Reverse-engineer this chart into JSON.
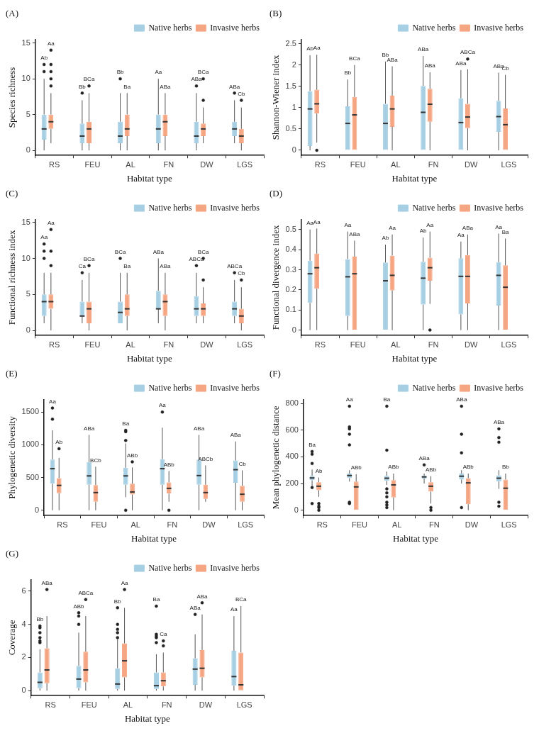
{
  "chart_data": [
    {
      "type": "box",
      "title": "(A)",
      "xlabel": "Habitat type",
      "ylabel": "Species richness",
      "categories": [
        "RS",
        "FEU",
        "AL",
        "FN",
        "DW",
        "LGS"
      ],
      "ylim": [
        -0.7,
        15.5
      ],
      "yticks": [
        0,
        5,
        10,
        15
      ],
      "grid": false,
      "legend": "top right",
      "series": [
        {
          "name": "Native herbs",
          "color": "#a6cfe3",
          "value_labels": [
            "Ab",
            "Bb",
            "Bb",
            "Aa",
            "ABa",
            "ABa"
          ],
          "boxes": [
            {
              "low": 0,
              "q1": 1.5,
              "median": 3,
              "q3": 5,
              "high": 10,
              "outliers": [
                11,
                12
              ]
            },
            {
              "low": 0,
              "q1": 1,
              "median": 2,
              "q3": 3.75,
              "high": 7,
              "outliers": [
                8
              ]
            },
            {
              "low": 0,
              "q1": 1,
              "median": 2,
              "q3": 4,
              "high": 8,
              "outliers": [
                10
              ]
            },
            {
              "low": 0,
              "q1": 1,
              "median": 3,
              "q3": 5,
              "high": 10
            },
            {
              "low": 0,
              "q1": 1,
              "median": 2,
              "q3": 4,
              "high": 8,
              "outliers": [
                9
              ]
            },
            {
              "low": 1,
              "q1": 2,
              "median": 3,
              "q3": 4,
              "high": 7,
              "outliers": [
                8
              ]
            }
          ]
        },
        {
          "name": "Invasive herbs",
          "color": "#f5a582",
          "value_labels": [
            "Aa",
            "BCa",
            "Ba",
            "ABa",
            "BCa",
            "Cb"
          ],
          "boxes": [
            {
              "low": 1,
              "q1": 3,
              "median": 4,
              "q3": 5,
              "high": 8,
              "outliers": [
                9,
                10,
                11,
                12,
                14
              ]
            },
            {
              "low": 0,
              "q1": 1,
              "median": 3,
              "q3": 4,
              "high": 8,
              "outliers": [
                9
              ]
            },
            {
              "low": 0,
              "q1": 2,
              "median": 3,
              "q3": 5,
              "high": 8
            },
            {
              "low": 0,
              "q1": 2,
              "median": 4,
              "q3": 5,
              "high": 8
            },
            {
              "low": 1,
              "q1": 2,
              "median": 3,
              "q3": 3.75,
              "high": 6,
              "outliers": [
                7,
                10
              ]
            },
            {
              "low": 0,
              "q1": 1,
              "median": 2,
              "q3": 3,
              "high": 6,
              "outliers": [
                7
              ]
            }
          ]
        }
      ]
    },
    {
      "type": "box",
      "title": "(B)",
      "xlabel": "Habitat type",
      "ylabel": "Shannon-Wiener index",
      "categories": [
        "RS",
        "FEU",
        "AL",
        "FN",
        "DW",
        "LGS"
      ],
      "ylim": [
        -0.12,
        2.6
      ],
      "yticks": [
        0,
        0.5,
        1,
        1.5,
        2,
        2.5
      ],
      "grid": false,
      "legend": "top right",
      "series": [
        {
          "name": "Native herbs",
          "color": "#a6cfe3",
          "value_labels": [
            "Ab",
            "Bb",
            "Bb",
            "ABa",
            "ABa",
            "ABa"
          ],
          "boxes": [
            {
              "low": 0,
              "q1": 0.1,
              "median": 0.97,
              "q3": 1.39,
              "high": 2.23
            },
            {
              "low": 0,
              "q1": 0,
              "median": 0.63,
              "q3": 1.03,
              "high": 1.66
            },
            {
              "low": 0,
              "q1": 0,
              "median": 0.63,
              "q3": 1.09,
              "high": 2.08
            },
            {
              "low": 0,
              "q1": 0,
              "median": 0.89,
              "q3": 1.51,
              "high": 2.21
            },
            {
              "low": 0,
              "q1": 0,
              "median": 0.65,
              "q3": 1.22,
              "high": 1.88
            },
            {
              "low": 0,
              "q1": 0.43,
              "median": 0.79,
              "q3": 1.16,
              "high": 1.82
            }
          ]
        },
        {
          "name": "Invasive herbs",
          "color": "#f5a582",
          "value_labels": [
            "Aa",
            "BCa",
            "ABa",
            "ABa",
            "ABCa",
            "Cb"
          ],
          "boxes": [
            {
              "low": 0.18,
              "q1": 0.86,
              "median": 1.09,
              "q3": 1.42,
              "high": 2.24,
              "outliers": [
                0
              ]
            },
            {
              "low": 0,
              "q1": 0,
              "median": 0.83,
              "q3": 1.25,
              "high": 2.0
            },
            {
              "low": 0,
              "q1": 0.55,
              "median": 0.97,
              "q3": 1.28,
              "high": 1.97
            },
            {
              "low": 0,
              "q1": 0.67,
              "median": 1.08,
              "q3": 1.44,
              "high": 1.83
            },
            {
              "low": 0,
              "q1": 0.52,
              "median": 0.78,
              "q3": 1.09,
              "high": 1.9,
              "outliers": [
                2.14
              ]
            },
            {
              "low": 0,
              "q1": 0,
              "median": 0.6,
              "q3": 0.98,
              "high": 1.77
            }
          ]
        }
      ]
    },
    {
      "type": "box",
      "title": "(C)",
      "xlabel": "Habitat type",
      "ylabel": "Functional richness index",
      "categories": [
        "RS",
        "FEU",
        "AL",
        "FN",
        "DW",
        "LGS"
      ],
      "ylim": [
        -0.7,
        15.4
      ],
      "yticks": [
        0,
        5,
        10,
        15
      ],
      "grid": false,
      "legend": "top right",
      "series": [
        {
          "name": "Native herbs",
          "color": "#a6cfe3",
          "value_labels": [
            "Aa",
            "Ca",
            "BCa",
            "ABa",
            "ABCa",
            "ABCa"
          ],
          "boxes": [
            {
              "low": 1,
              "q1": 2,
              "median": 4,
              "q3": 5,
              "high": 8,
              "outliers": [
                10,
                11,
                12
              ]
            },
            {
              "low": 1,
              "q1": 2,
              "median": 2,
              "q3": 4,
              "high": 7,
              "outliers": [
                8
              ]
            },
            {
              "low": 1,
              "q1": 1,
              "median": 2.5,
              "q3": 4,
              "high": 8,
              "outliers": [
                10
              ]
            },
            {
              "low": 1,
              "q1": 3,
              "median": 3,
              "q3": 5.5,
              "high": 10
            },
            {
              "low": 1,
              "q1": 2,
              "median": 3,
              "q3": 4.75,
              "high": 8,
              "outliers": [
                9
              ]
            },
            {
              "low": 1,
              "q1": 2,
              "median": 3,
              "q3": 4,
              "high": 7,
              "outliers": [
                8
              ]
            }
          ]
        },
        {
          "name": "Invasive herbs",
          "color": "#f5a582",
          "value_labels": [
            "Aa",
            "BCa",
            "Ba",
            "ABa",
            "BCa",
            "Cb"
          ],
          "boxes": [
            {
              "low": 0,
              "q1": 3,
              "median": 4,
              "q3": 5,
              "high": 8,
              "outliers": [
                9,
                11,
                14
              ]
            },
            {
              "low": 0,
              "q1": 1,
              "median": 3,
              "q3": 4,
              "high": 8,
              "outliers": [
                9
              ]
            },
            {
              "low": 0,
              "q1": 2,
              "median": 3,
              "q3": 5,
              "high": 8
            },
            {
              "low": 0,
              "q1": 2,
              "median": 4,
              "q3": 5,
              "high": 8
            },
            {
              "low": 1,
              "q1": 2,
              "median": 3,
              "q3": 3.75,
              "high": 6,
              "outliers": [
                7,
                10
              ]
            },
            {
              "low": 0,
              "q1": 1,
              "median": 2,
              "q3": 3,
              "high": 6,
              "outliers": [
                7
              ]
            }
          ]
        }
      ]
    },
    {
      "type": "box",
      "title": "(D)",
      "xlabel": "Habitat type",
      "ylabel": "Functional divergence index",
      "categories": [
        "RS",
        "FEU",
        "AL",
        "FN",
        "DW",
        "LGS"
      ],
      "ylim": [
        -0.027,
        0.55
      ],
      "yticks": [
        0,
        0.1,
        0.2,
        0.3,
        0.4,
        0.5
      ],
      "grid": false,
      "legend": "top right",
      "series": [
        {
          "name": "Native herbs",
          "color": "#a6cfe3",
          "value_labels": [
            "Aa",
            "Aa",
            "Ab",
            "Ab",
            "Aa",
            "Aa"
          ],
          "boxes": [
            {
              "low": 0,
              "q1": 0.135,
              "median": 0.28,
              "q3": 0.345,
              "high": 0.5
            },
            {
              "low": 0,
              "q1": 0.07,
              "median": 0.265,
              "q3": 0.353,
              "high": 0.49
            },
            {
              "low": 0,
              "q1": 0,
              "median": 0.245,
              "q3": 0.336,
              "high": 0.425
            },
            {
              "low": 0,
              "q1": 0.127,
              "median": 0.258,
              "q3": 0.34,
              "high": 0.46
            },
            {
              "low": 0,
              "q1": 0.078,
              "median": 0.267,
              "q3": 0.357,
              "high": 0.44
            },
            {
              "low": 0,
              "q1": 0.122,
              "median": 0.272,
              "q3": 0.338,
              "high": 0.48
            }
          ]
        },
        {
          "name": "Invasive herbs",
          "color": "#f5a582",
          "value_labels": [
            "Aa",
            "ABa",
            "Aa",
            "Aa",
            "ABa",
            "Ba"
          ],
          "boxes": [
            {
              "low": 0,
              "q1": 0.205,
              "median": 0.31,
              "q3": 0.38,
              "high": 0.505
            },
            {
              "low": 0,
              "q1": 0,
              "median": 0.28,
              "q3": 0.365,
              "high": 0.445
            },
            {
              "low": 0,
              "q1": 0.197,
              "median": 0.272,
              "q3": 0.37,
              "high": 0.475
            },
            {
              "low": 0.13,
              "q1": 0.245,
              "median": 0.31,
              "q3": 0.36,
              "high": 0.49,
              "outliers": [
                0
              ]
            },
            {
              "low": 0,
              "q1": 0.132,
              "median": 0.267,
              "q3": 0.373,
              "high": 0.475
            },
            {
              "low": 0,
              "q1": 0,
              "median": 0.213,
              "q3": 0.322,
              "high": 0.455
            }
          ]
        }
      ]
    },
    {
      "type": "box",
      "title": "(E)",
      "xlabel": "Habitat type",
      "ylabel": "Phylogenetic diversity",
      "categories": [
        "RS",
        "FEU",
        "AL",
        "FN",
        "DW",
        "LGS"
      ],
      "ylim": [
        -80,
        1690
      ],
      "yticks": [
        0,
        500,
        1000,
        1500
      ],
      "grid": false,
      "legend": "top right",
      "series": [
        {
          "name": "Native herbs",
          "color": "#a6cfe3",
          "value_labels": [
            "Aa",
            "ABa",
            "Ba",
            "Aa",
            "ABa",
            "ABa"
          ],
          "boxes": [
            {
              "low": 0,
              "q1": 405,
              "median": 635,
              "q3": 775,
              "high": 1220,
              "outliers": [
                1390,
                1560
              ]
            },
            {
              "low": 0,
              "q1": 390,
              "median": 525,
              "q3": 735,
              "high": 1150
            },
            {
              "low": 200,
              "q1": 390,
              "median": 525,
              "q3": 650,
              "high": 1020,
              "outliers": [
                0,
                1065,
                1200,
                1220
              ]
            },
            {
              "low": 0,
              "q1": 390,
              "median": 635,
              "q3": 780,
              "high": 1260,
              "outliers": [
                1500
              ]
            },
            {
              "low": 0,
              "q1": 390,
              "median": 530,
              "q3": 775,
              "high": 1150
            },
            {
              "low": 0,
              "q1": 420,
              "median": 620,
              "q3": 760,
              "high": 1050
            }
          ]
        },
        {
          "name": "Invasive herbs",
          "color": "#f5a582",
          "value_labels": [
            "Ab",
            "BCb",
            "ABb",
            "ABb",
            "ABCb",
            "Cb"
          ],
          "boxes": [
            {
              "low": 0,
              "q1": 260,
              "median": 380,
              "q3": 490,
              "high": 800,
              "outliers": [
                940
              ]
            },
            {
              "low": 0,
              "q1": 130,
              "median": 270,
              "q3": 385,
              "high": 665
            },
            {
              "low": 0,
              "q1": 240,
              "median": 280,
              "q3": 405,
              "high": 655,
              "outliers": [
                740
              ]
            },
            {
              "low": 130,
              "q1": 255,
              "median": 335,
              "q3": 425,
              "high": 600,
              "outliers": [
                0
              ]
            },
            {
              "low": 130,
              "q1": 175,
              "median": 270,
              "q3": 390,
              "high": 685
            },
            {
              "low": 0,
              "q1": 130,
              "median": 245,
              "q3": 375,
              "high": 610
            }
          ]
        }
      ]
    },
    {
      "type": "box",
      "title": "(F)",
      "xlabel": "Habitat type",
      "ylabel": "Mean phylogenetic distance",
      "categories": [
        "RS",
        "FEU",
        "AL",
        "FN",
        "DW",
        "LGS"
      ],
      "ylim": [
        -40,
        830
      ],
      "yticks": [
        0,
        200,
        400,
        600,
        800
      ],
      "grid": false,
      "legend": "top right",
      "series": [
        {
          "name": "Native herbs",
          "color": "#a6cfe3",
          "value_labels": [
            "Ba",
            "Aa",
            "Ba",
            "ABa",
            "ABa",
            "ABa"
          ],
          "boxes": [
            {
              "low": 180,
              "q1": 225,
              "median": 242,
              "q3": 258,
              "high": 305,
              "outliers": [
                50,
                170,
                350,
                420,
                440
              ]
            },
            {
              "low": 215,
              "q1": 240,
              "median": 260,
              "q3": 275,
              "high": 300,
              "outliers": [
                50,
                60,
                490,
                570,
                610,
                625,
                780
              ]
            },
            {
              "low": 190,
              "q1": 220,
              "median": 240,
              "q3": 258,
              "high": 290,
              "outliers": [
                20,
                40,
                60,
                100,
                130,
                160,
                450,
                780
              ]
            },
            {
              "low": 200,
              "q1": 238,
              "median": 250,
              "q3": 258,
              "high": 275,
              "outliers": [
                340
              ]
            },
            {
              "low": 200,
              "q1": 230,
              "median": 255,
              "q3": 275,
              "high": 300,
              "outliers": [
                20,
                430,
                570,
                780
              ]
            },
            {
              "low": 160,
              "q1": 215,
              "median": 240,
              "q3": 262,
              "high": 300,
              "outliers": [
                30,
                60,
                510,
                545,
                610
              ]
            }
          ]
        },
        {
          "name": "Invasive herbs",
          "color": "#f5a582",
          "value_labels": [
            "Ab",
            "ABb",
            "ABb",
            "ABb",
            "ABb",
            "Bb"
          ],
          "boxes": [
            {
              "low": 100,
              "q1": 150,
              "median": 180,
              "q3": 210,
              "high": 245,
              "outliers": [
                0,
                20,
                30,
                50
              ]
            },
            {
              "low": 0,
              "q1": 0,
              "median": 175,
              "q3": 215,
              "high": 270
            },
            {
              "low": 0,
              "q1": 95,
              "median": 190,
              "q3": 225,
              "high": 275
            },
            {
              "low": 50,
              "q1": 140,
              "median": 180,
              "q3": 210,
              "high": 255,
              "outliers": [
                0,
                20
              ]
            },
            {
              "low": 0,
              "q1": 45,
              "median": 205,
              "q3": 240,
              "high": 275
            },
            {
              "low": 0,
              "q1": 0,
              "median": 165,
              "q3": 230,
              "high": 275
            }
          ]
        }
      ]
    },
    {
      "type": "box",
      "title": "(G)",
      "xlabel": "Habitat type",
      "ylabel": "Coverage",
      "categories": [
        "RS",
        "FEU",
        "AL",
        "FN",
        "DW",
        "LGS"
      ],
      "ylim": [
        -0.3,
        6.7
      ],
      "yticks": [
        0,
        2,
        4,
        6
      ],
      "grid": false,
      "legend": "top right",
      "series": [
        {
          "name": "Native herbs",
          "color": "#a6cfe3",
          "value_labels": [
            "Bb",
            "ABb",
            "Bb",
            "Ba",
            "ABa",
            "Aa"
          ],
          "boxes": [
            {
              "low": 0,
              "q1": 0.15,
              "median": 0.5,
              "q3": 1.1,
              "high": 2.5,
              "outliers": [
                2.9,
                3.0,
                3.2,
                3.5,
                3.8,
                3.9
              ]
            },
            {
              "low": 0,
              "q1": 0.15,
              "median": 0.7,
              "q3": 1.5,
              "high": 3.5,
              "outliers": [
                4.0,
                4.5,
                4.7
              ]
            },
            {
              "low": 0,
              "q1": 0.1,
              "median": 0.4,
              "q3": 1.35,
              "high": 3.1,
              "outliers": [
                3.2,
                3.5,
                3.7,
                4.0,
                5.0
              ]
            },
            {
              "low": 0,
              "q1": 0.1,
              "median": 0.3,
              "q3": 1.1,
              "high": 2.2,
              "outliers": [
                2.9,
                3.2,
                3.3,
                3.4,
                5.1
              ]
            },
            {
              "low": 0,
              "q1": 0.35,
              "median": 1.3,
              "q3": 1.95,
              "high": 3.4,
              "outliers": [
                4.6
              ]
            },
            {
              "low": 0,
              "q1": 0.3,
              "median": 0.85,
              "q3": 2.4,
              "high": 4.5
            }
          ]
        },
        {
          "name": "Invasive herbs",
          "color": "#f5a582",
          "value_labels": [
            "ABa",
            "ABCa",
            "Aa",
            "Ca",
            "ABa",
            "BCa"
          ],
          "boxes": [
            {
              "low": 0,
              "q1": 0.45,
              "median": 1.25,
              "q3": 2.55,
              "high": 4.5,
              "outliers": [
                6.1
              ]
            },
            {
              "low": 0,
              "q1": 0.5,
              "median": 1.25,
              "q3": 2.35,
              "high": 4.5,
              "outliers": [
                5.5
              ]
            },
            {
              "low": 0,
              "q1": 0.8,
              "median": 1.8,
              "q3": 2.85,
              "high": 5.0,
              "outliers": [
                6.1
              ]
            },
            {
              "low": 0,
              "q1": 0.25,
              "median": 0.6,
              "q3": 1.1,
              "high": 2.3,
              "outliers": [
                2.7,
                3.0
              ]
            },
            {
              "low": 0,
              "q1": 0.8,
              "median": 1.35,
              "q3": 2.45,
              "high": 4.6,
              "outliers": [
                5.3
              ]
            },
            {
              "low": 0,
              "q1": 0,
              "median": 0.35,
              "q3": 2.3,
              "high": 5.1
            }
          ]
        }
      ]
    }
  ]
}
